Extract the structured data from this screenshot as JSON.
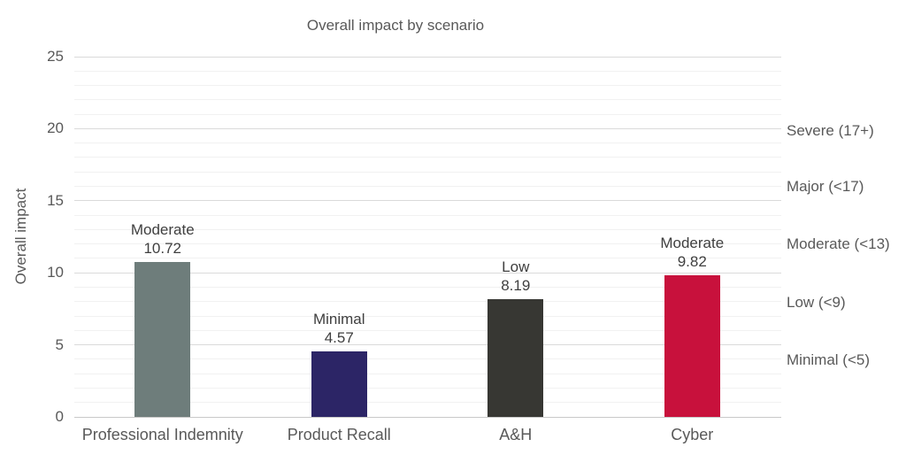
{
  "chart_data": {
    "type": "bar",
    "title": "Overall impact by scenario",
    "ylabel": "Overall impact",
    "xlabel": "",
    "ylim": [
      0,
      25
    ],
    "y_ticks": [
      0,
      5,
      10,
      15,
      20,
      25
    ],
    "minor_grid_step": 1,
    "grid": true,
    "legend": "none",
    "categories": [
      "Professional Indemnity",
      "Product Recall",
      "A&H",
      "Cyber"
    ],
    "values": [
      10.72,
      4.57,
      8.19,
      9.82
    ],
    "bars": [
      {
        "category": "Professional Indemnity",
        "value": 10.72,
        "value_label": "10.72",
        "rating": "Moderate",
        "color": "#6e7d7b"
      },
      {
        "category": "Product Recall",
        "value": 4.57,
        "value_label": "4.57",
        "rating": "Minimal",
        "color": "#2c2566"
      },
      {
        "category": "A&H",
        "value": 8.19,
        "value_label": "8.19",
        "rating": "Low",
        "color": "#373733"
      },
      {
        "category": "Cyber",
        "value": 9.82,
        "value_label": "9.82",
        "rating": "Moderate",
        "color": "#c8113c"
      }
    ],
    "right_axis_bands": [
      {
        "label": "Severe (17+)",
        "anchor_value": 19.85
      },
      {
        "label": "Major (<17)",
        "anchor_value": 15.95
      },
      {
        "label": "Moderate (<13)",
        "anchor_value": 11.95
      },
      {
        "label": "Low (<9)",
        "anchor_value": 7.95
      },
      {
        "label": "Minimal (<5)",
        "anchor_value": 3.95
      }
    ],
    "colors": {
      "axis_text": "#595959",
      "data_label_text": "#3f3f3f",
      "major_grid": "#dadada",
      "minor_grid": "#f1f1f1",
      "baseline": "#c9c9c9",
      "background": "#ffffff"
    }
  }
}
